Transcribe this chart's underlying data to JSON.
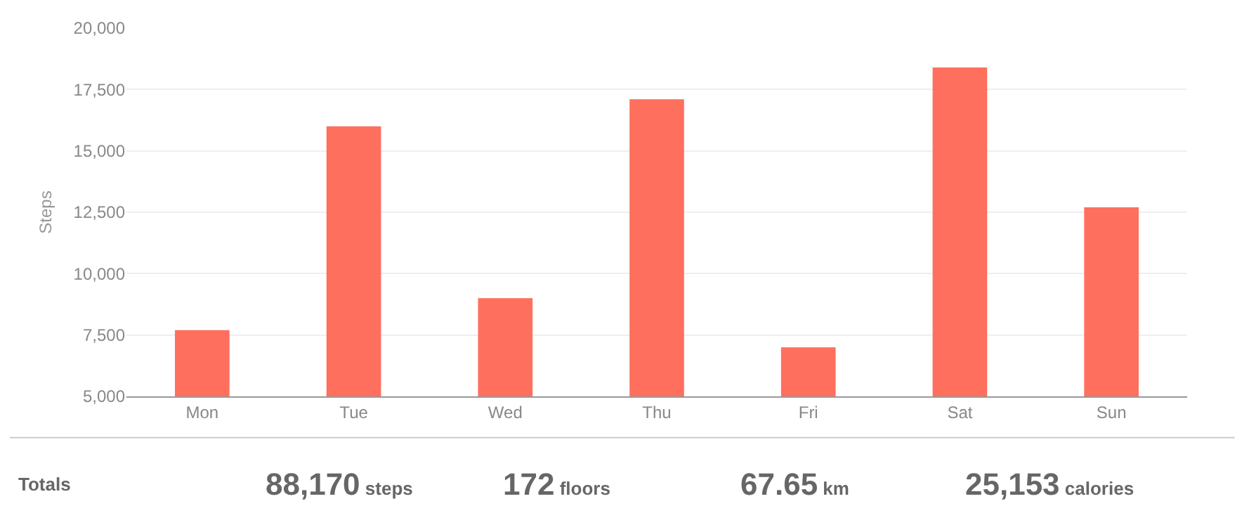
{
  "chart_data": {
    "type": "bar",
    "ylabel": "Steps",
    "categories": [
      "Mon",
      "Tue",
      "Wed",
      "Thu",
      "Fri",
      "Sat",
      "Sun"
    ],
    "series": [
      {
        "color": "#ff6f5e",
        "values": [
          7700,
          16000,
          9000,
          17100,
          7000,
          18400,
          12700
        ]
      }
    ],
    "ylim": [
      5000,
      20000
    ],
    "yticks": [
      {
        "value": 5000,
        "label": "5,000"
      },
      {
        "value": 7500,
        "label": "7,500"
      },
      {
        "value": 10000,
        "label": "10,000"
      },
      {
        "value": 12500,
        "label": "12,500"
      },
      {
        "value": 15000,
        "label": "15,000"
      },
      {
        "value": 17500,
        "label": "17,500"
      },
      {
        "value": 20000,
        "label": "20,000"
      }
    ],
    "grid": "y",
    "annotations": [
      "Totals",
      "88,170 steps",
      "172 floors",
      "67.65 km",
      "25,153 calories"
    ]
  }
}
